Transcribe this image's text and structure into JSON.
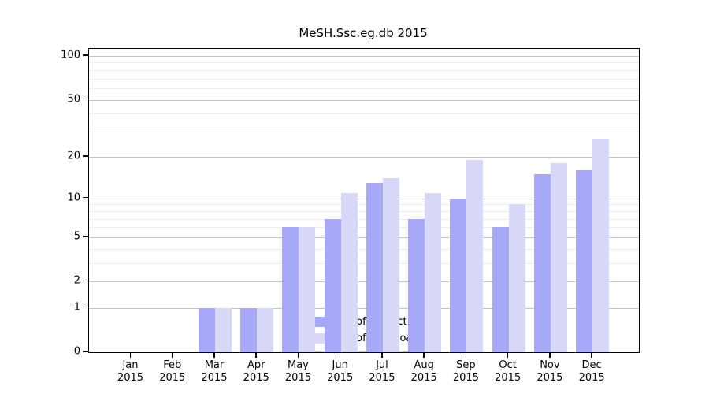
{
  "title": "MeSH.Ssc.eg.db 2015",
  "legend": {
    "entries": [
      "Nb of distinct IPs",
      "Nb of downloads"
    ]
  },
  "colors": {
    "distinct_ips": "#a8a8f8",
    "downloads": "#d8d8f8",
    "major_grid": "#c4c4c4",
    "minor_grid": "#ededed",
    "spine": "#000000"
  },
  "chart_data": {
    "type": "bar",
    "title": "MeSH.Ssc.eg.db 2015",
    "xlabel": "",
    "ylabel": "",
    "categories": [
      "Jan 2015",
      "Feb 2015",
      "Mar 2015",
      "Apr 2015",
      "May 2015",
      "Jun 2015",
      "Jul 2015",
      "Aug 2015",
      "Sep 2015",
      "Oct 2015",
      "Nov 2015",
      "Dec 2015"
    ],
    "category_months": [
      "Jan",
      "Feb",
      "Mar",
      "Apr",
      "May",
      "Jun",
      "Jul",
      "Aug",
      "Sep",
      "Oct",
      "Nov",
      "Dec"
    ],
    "category_year": "2015",
    "series": [
      {
        "name": "Nb of distinct IPs",
        "color": "#a8a8f8",
        "values": [
          0,
          0,
          1,
          1,
          6,
          7,
          13,
          7,
          10,
          6,
          15,
          16
        ]
      },
      {
        "name": "Nb of downloads",
        "color": "#d8d8f8",
        "values": [
          0,
          0,
          1,
          1,
          6,
          11,
          14,
          11,
          19,
          9,
          18,
          27
        ]
      }
    ],
    "yscale": "log1p",
    "ylim": [
      0,
      100
    ],
    "y_major_ticks": [
      100,
      50,
      20,
      10,
      5,
      2,
      1,
      0
    ],
    "y_minor_gridlines": [
      3,
      4,
      6,
      7,
      8,
      9,
      30,
      40,
      60,
      70,
      80,
      90
    ],
    "grid": true,
    "legend_position": "lower center"
  }
}
